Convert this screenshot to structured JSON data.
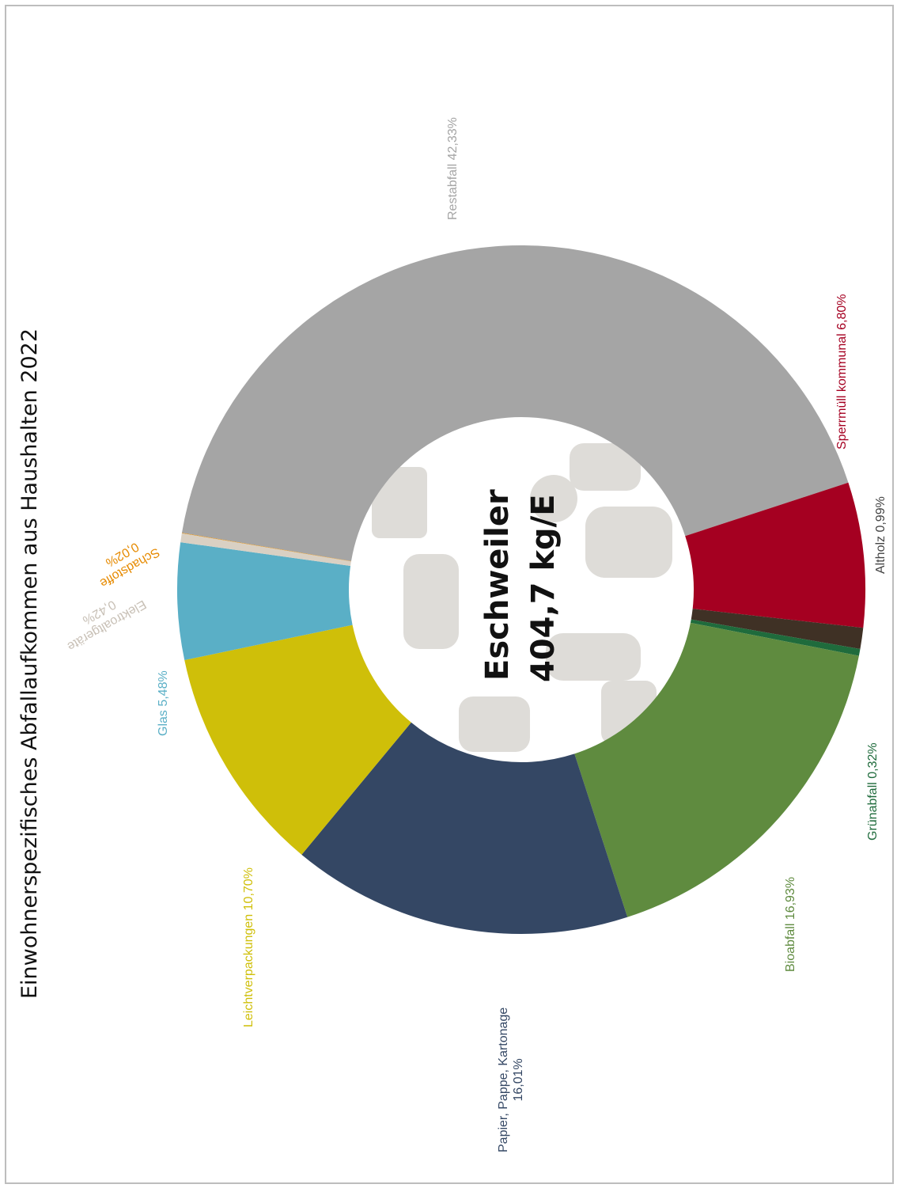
{
  "chart_data": {
    "type": "pie",
    "title": "Einwohnerspezifisches Abfallaufkommen  aus Haushalten 2022",
    "center_label": {
      "line1": "Eschweiler",
      "line2": "404,7 kg/E"
    },
    "slices": [
      {
        "name": "Restabfall",
        "value": 42.33,
        "label": "Restabfall 42,33%",
        "color": "#a5a5a5"
      },
      {
        "name": "Sperrmüll kommunal",
        "value": 6.8,
        "label": "Sperrmüll kommunal 6,80%",
        "color": "#a50021"
      },
      {
        "name": "Altholz",
        "value": 0.99,
        "label": "Altholz 0,99%",
        "color": "#3f3125"
      },
      {
        "name": "Grünabfall",
        "value": 0.32,
        "label": "Grünabfall 0,32%",
        "color": "#1f6b3c"
      },
      {
        "name": "Bioabfall",
        "value": 16.93,
        "label": "Bioabfall 16,93%",
        "color": "#5f8b3f"
      },
      {
        "name": "Papier, Pappe, Kartonage",
        "value": 16.01,
        "label_line1": "Papier, Pappe, Kartonage",
        "label_line2": "16,01%",
        "color": "#344764"
      },
      {
        "name": "Leichtverpackungen",
        "value": 10.7,
        "label": "Leichtverpackungen 10,70%",
        "color": "#cfbf09"
      },
      {
        "name": "Glas",
        "value": 5.48,
        "label": "Glas 5,48%",
        "color": "#5aafc6"
      },
      {
        "name": "Elektroaltgeräte",
        "value": 0.42,
        "label_line1": "Elektroaltgeräte",
        "label_line2": "0,42%",
        "color": "#d9d0c3"
      },
      {
        "name": "Schadstoffe",
        "value": 0.02,
        "label_line1": "Schadstoffe",
        "label_line2": "0,02%",
        "color": "#e68a00"
      }
    ],
    "donut": true,
    "legend": "none"
  },
  "label_colors": {
    "Restabfall": "#a5a5a5",
    "Sperrmüll kommunal": "#a50021",
    "Altholz": "#444444",
    "Grünabfall": "#1f6b3c",
    "Bioabfall": "#5f8b3f",
    "Papier, Pappe, Kartonage": "#344764",
    "Leichtverpackungen": "#cfbf09",
    "Glas": "#5aafc6",
    "Elektroaltgeräte": "#c8c0b6",
    "Schadstoffe": "#e68a00"
  }
}
